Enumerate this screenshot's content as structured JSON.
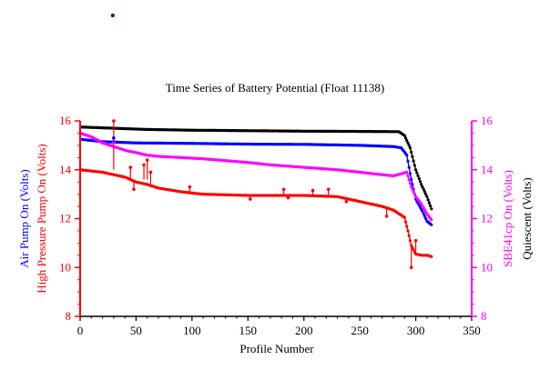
{
  "chart_data": {
    "type": "line",
    "title": "Time Series of Battery Potential (Float 11138)",
    "xlabel": "Profile Number",
    "xlim": [
      0,
      350
    ],
    "xticks": [
      0,
      50,
      100,
      150,
      200,
      250,
      300,
      350
    ],
    "ylim": [
      8,
      16
    ],
    "yticks": [
      8,
      10,
      12,
      14,
      16
    ],
    "left_axis_labels": [
      {
        "text": "Air Pump On (Volts)",
        "color": "#0000ff"
      },
      {
        "text": "High Pressure Pump On (Volts)",
        "color": "#ff0000"
      }
    ],
    "right_axis_labels": [
      {
        "text": "SBE41cp On (Volts)",
        "color": "#ff00ff"
      },
      {
        "text": "Quiescent (Volts)",
        "color": "#000000"
      }
    ],
    "left_axis_color": "#ff0000",
    "right_axis_color": "#ff00ff",
    "series": [
      {
        "key": "quiescent",
        "color": "#000000",
        "points": [
          [
            0,
            15.75
          ],
          [
            30,
            15.7
          ],
          [
            60,
            15.65
          ],
          [
            100,
            15.62
          ],
          [
            150,
            15.6
          ],
          [
            200,
            15.58
          ],
          [
            250,
            15.57
          ],
          [
            285,
            15.56
          ],
          [
            290,
            15.4
          ],
          [
            295,
            14.9
          ],
          [
            300,
            14.0
          ],
          [
            305,
            13.4
          ],
          [
            310,
            12.9
          ],
          [
            314,
            12.4
          ]
        ]
      },
      {
        "key": "air_pump",
        "color": "#0000ff",
        "points": [
          [
            0,
            15.25
          ],
          [
            20,
            15.15
          ],
          [
            50,
            15.1
          ],
          [
            100,
            15.08
          ],
          [
            150,
            15.05
          ],
          [
            200,
            15.04
          ],
          [
            250,
            15.0
          ],
          [
            280,
            14.95
          ],
          [
            287,
            14.9
          ],
          [
            292,
            14.6
          ],
          [
            296,
            13.6
          ],
          [
            300,
            12.8
          ],
          [
            306,
            12.3
          ],
          [
            310,
            11.9
          ],
          [
            314,
            11.75
          ]
        ]
      },
      {
        "key": "sbe41cp",
        "color": "#ff00ff",
        "points": [
          [
            0,
            15.5
          ],
          [
            10,
            15.35
          ],
          [
            20,
            15.1
          ],
          [
            30,
            14.95
          ],
          [
            40,
            14.8
          ],
          [
            50,
            14.7
          ],
          [
            60,
            14.6
          ],
          [
            70,
            14.55
          ],
          [
            90,
            14.5
          ],
          [
            110,
            14.45
          ],
          [
            150,
            14.3
          ],
          [
            170,
            14.2
          ],
          [
            200,
            14.1
          ],
          [
            230,
            14.0
          ],
          [
            250,
            13.9
          ],
          [
            270,
            13.8
          ],
          [
            280,
            13.75
          ],
          [
            288,
            13.85
          ],
          [
            292,
            13.9
          ],
          [
            296,
            13.3
          ],
          [
            300,
            12.9
          ],
          [
            305,
            12.6
          ],
          [
            310,
            12.2
          ],
          [
            314,
            11.95
          ]
        ]
      },
      {
        "key": "high_pressure_pump",
        "color": "#ff0000",
        "points": [
          [
            0,
            14.0
          ],
          [
            20,
            13.9
          ],
          [
            40,
            13.7
          ],
          [
            50,
            13.5
          ],
          [
            60,
            13.4
          ],
          [
            70,
            13.25
          ],
          [
            90,
            13.1
          ],
          [
            110,
            13.0
          ],
          [
            150,
            12.95
          ],
          [
            200,
            12.95
          ],
          [
            230,
            12.9
          ],
          [
            250,
            12.7
          ],
          [
            270,
            12.5
          ],
          [
            280,
            12.35
          ],
          [
            285,
            12.2
          ],
          [
            290,
            12.05
          ],
          [
            293,
            11.5
          ],
          [
            296,
            10.9
          ],
          [
            300,
            10.55
          ],
          [
            305,
            10.5
          ],
          [
            310,
            10.5
          ],
          [
            314,
            10.45
          ]
        ]
      }
    ],
    "spikes": [
      {
        "key": "high_pressure_pump",
        "x": 30,
        "y_from": 14.0,
        "y_to": 16.0
      },
      {
        "key": "high_pressure_pump",
        "x": 45,
        "y_from": 13.6,
        "y_to": 14.1
      },
      {
        "key": "high_pressure_pump",
        "x": 48,
        "y_from": 13.5,
        "y_to": 13.2
      },
      {
        "key": "high_pressure_pump",
        "x": 57,
        "y_from": 13.6,
        "y_to": 14.2
      },
      {
        "key": "high_pressure_pump",
        "x": 60,
        "y_from": 13.6,
        "y_to": 14.4
      },
      {
        "key": "high_pressure_pump",
        "x": 63,
        "y_from": 13.4,
        "y_to": 13.9
      },
      {
        "key": "high_pressure_pump",
        "x": 98,
        "y_from": 13.1,
        "y_to": 13.3
      },
      {
        "key": "high_pressure_pump",
        "x": 152,
        "y_from": 12.95,
        "y_to": 12.8
      },
      {
        "key": "high_pressure_pump",
        "x": 182,
        "y_from": 12.95,
        "y_to": 13.2
      },
      {
        "key": "high_pressure_pump",
        "x": 186,
        "y_from": 12.95,
        "y_to": 12.85
      },
      {
        "key": "high_pressure_pump",
        "x": 208,
        "y_from": 12.95,
        "y_to": 13.15
      },
      {
        "key": "high_pressure_pump",
        "x": 222,
        "y_from": 12.95,
        "y_to": 13.2
      },
      {
        "key": "high_pressure_pump",
        "x": 238,
        "y_from": 12.85,
        "y_to": 12.7
      },
      {
        "key": "high_pressure_pump",
        "x": 274,
        "y_from": 12.4,
        "y_to": 12.1
      },
      {
        "key": "high_pressure_pump",
        "x": 296,
        "y_from": 10.9,
        "y_to": 10.0
      },
      {
        "key": "high_pressure_pump",
        "x": 300,
        "y_from": 10.6,
        "y_to": 11.1
      },
      {
        "key": "air_pump",
        "x": 30,
        "y_from": 15.15,
        "y_to": 15.3
      },
      {
        "key": "sbe41cp",
        "x": 30,
        "y_from": 14.95,
        "y_to": 15.1
      }
    ],
    "stray_marker": {
      "x_frac": 0.205,
      "color": "#5a0a5a"
    },
    "grid": false,
    "legend": "none"
  }
}
